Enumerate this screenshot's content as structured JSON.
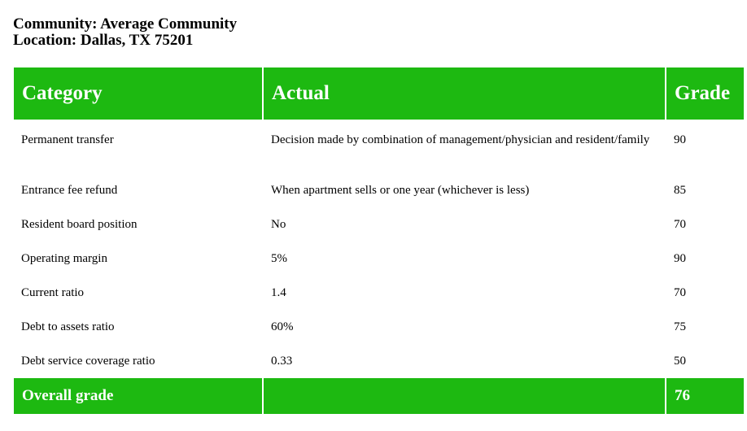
{
  "header": {
    "community_line": "Community: Average Community",
    "location_line": "Location: Dallas, TX 75201"
  },
  "table": {
    "columns": [
      "Category",
      "Actual",
      "Grade"
    ],
    "rows": [
      {
        "category": "Permanent transfer",
        "actual": "Decision made by combination of management/physician and resident/family",
        "grade": "90"
      },
      {
        "category": "Entrance fee refund",
        "actual": "When apartment sells or one year (whichever is less)",
        "grade": "85"
      },
      {
        "category": "Resident board position",
        "actual": "No",
        "grade": "70"
      },
      {
        "category": "Operating margin",
        "actual": "5%",
        "grade": "90"
      },
      {
        "category": "Current ratio",
        "actual": "1.4",
        "grade": "70"
      },
      {
        "category": "Debt to assets ratio",
        "actual": "60%",
        "grade": "75"
      },
      {
        "category": "Debt service coverage ratio",
        "actual": "0.33",
        "grade": "50"
      }
    ],
    "footer": {
      "label": "Overall grade",
      "actual": "",
      "grade": "76"
    }
  },
  "colors": {
    "header_green": "#1db911"
  }
}
